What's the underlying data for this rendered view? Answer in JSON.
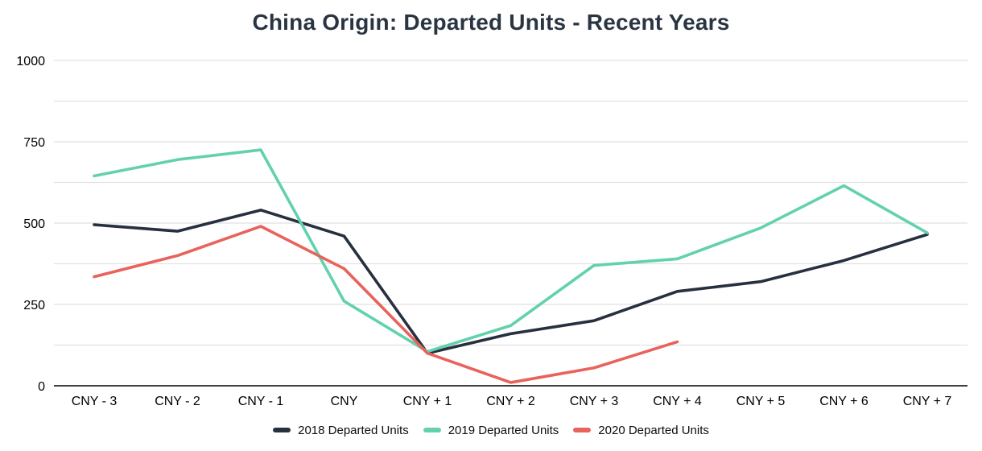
{
  "chart_data": {
    "type": "line",
    "title": "China Origin: Departed Units - Recent Years",
    "categories": [
      "CNY - 3",
      "CNY - 2",
      "CNY - 1",
      "CNY",
      "CNY + 1",
      "CNY + 2",
      "CNY + 3",
      "CNY + 4",
      "CNY + 5",
      "CNY + 6",
      "CNY + 7"
    ],
    "series": [
      {
        "name": "2018 Departed Units",
        "color": "#26303F",
        "values": [
          495,
          475,
          540,
          460,
          100,
          160,
          200,
          290,
          320,
          385,
          465
        ]
      },
      {
        "name": "2019 Departed Units",
        "color": "#63D1AE",
        "values": [
          645,
          695,
          725,
          260,
          105,
          185,
          370,
          390,
          485,
          615,
          470
        ]
      },
      {
        "name": "2020 Departed Units",
        "color": "#E8635C",
        "values": [
          335,
          400,
          490,
          360,
          100,
          10,
          55,
          135,
          null,
          null,
          null
        ]
      }
    ],
    "xlabel": "",
    "ylabel": "",
    "ylim": [
      0,
      1000
    ],
    "y_major_ticks": [
      0,
      250,
      500,
      750,
      1000
    ],
    "y_gridline_step": 125,
    "grid": true,
    "legend_position": "bottom",
    "colors": {
      "title": "#2A3542",
      "gridline": "#E1E1E1",
      "axis_line": "#3F3F3F",
      "tick_label": "#000000",
      "background": "#FFFFFF"
    }
  }
}
